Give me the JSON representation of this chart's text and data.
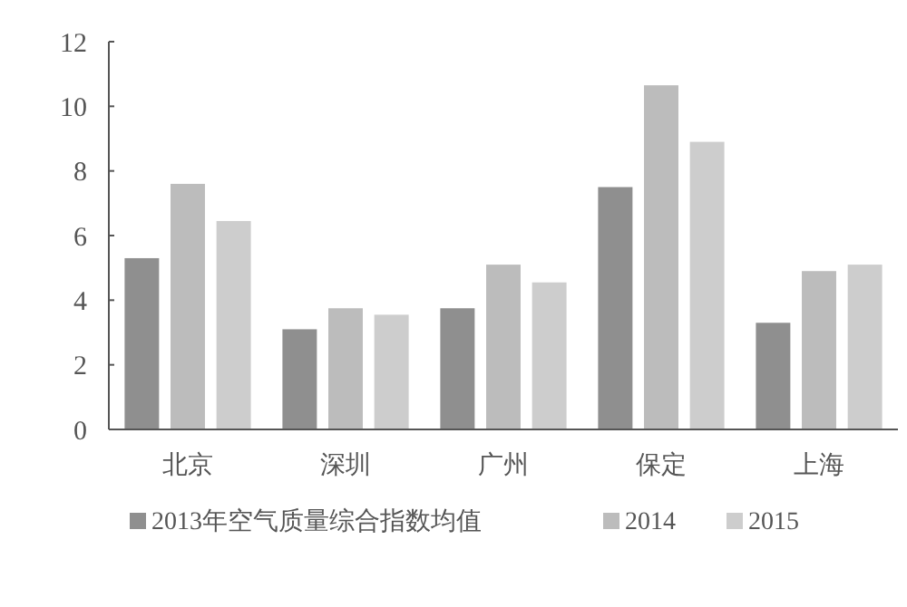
{
  "chart_data": {
    "type": "bar",
    "categories": [
      "北京",
      "深圳",
      "广州",
      "保定",
      "上海"
    ],
    "series": [
      {
        "name": "2013年空气质量综合指数均值",
        "color": "#8f8f8f",
        "values": [
          5.3,
          3.1,
          3.75,
          7.5,
          3.3
        ]
      },
      {
        "name": "2014",
        "color": "#bcbcbc",
        "values": [
          7.6,
          3.75,
          5.1,
          10.65,
          4.9
        ]
      },
      {
        "name": "2015",
        "color": "#cdcdcd",
        "values": [
          6.45,
          3.55,
          4.55,
          8.9,
          5.1
        ]
      }
    ],
    "ylim": [
      0,
      12
    ],
    "yticks": [
      0,
      2,
      4,
      6,
      8,
      10,
      12
    ],
    "grid": false,
    "legend": "bottom"
  }
}
